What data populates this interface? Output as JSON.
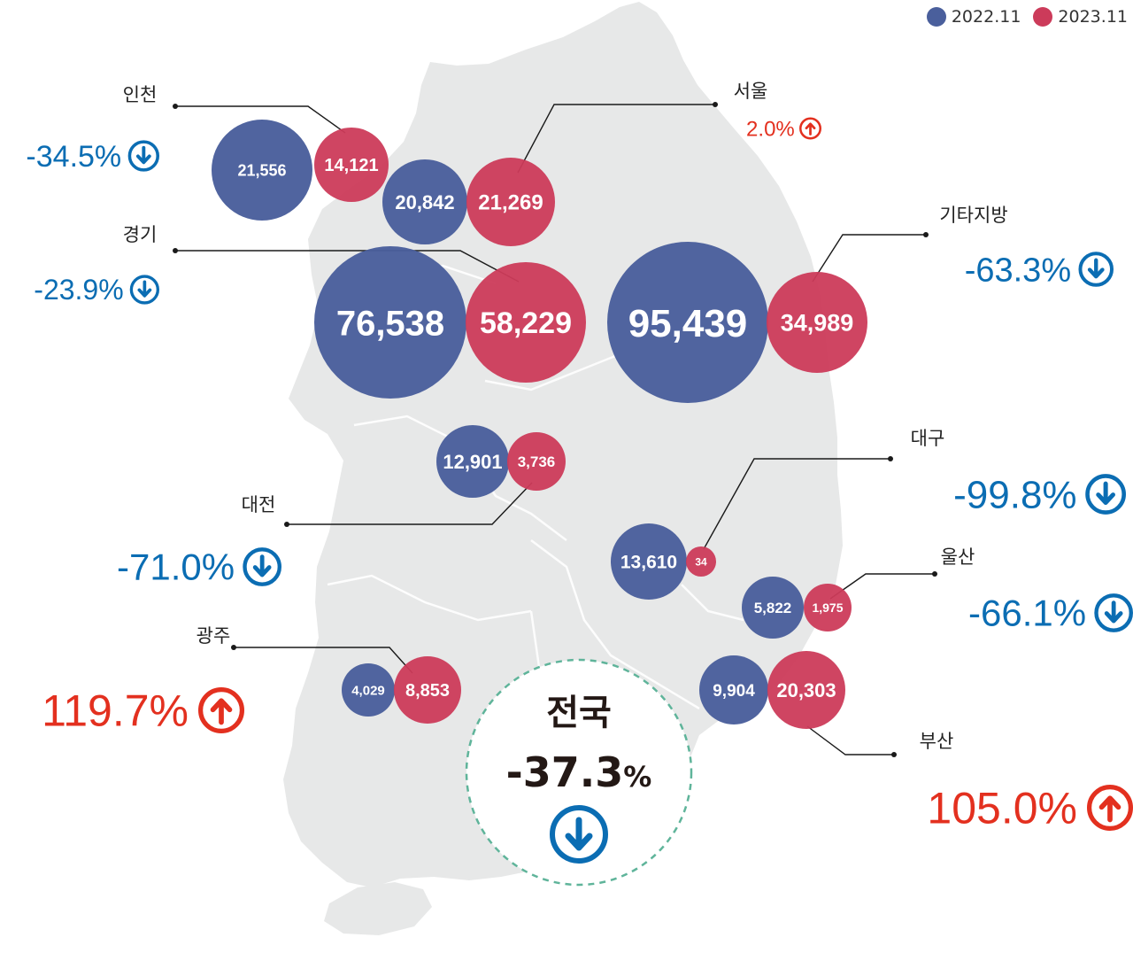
{
  "legend": {
    "items": [
      {
        "label": "2022.11",
        "color": "#4a5f9c"
      },
      {
        "label": "2023.11",
        "color": "#cc3b5a"
      }
    ]
  },
  "colors": {
    "y2022": "#4a5f9c",
    "y2023": "#cc3b5a",
    "down": "#0b6db3",
    "up": "#e3301f",
    "map": "#e7e8e8",
    "national_ring": "#5fb49a"
  },
  "national": {
    "name": "전국",
    "change": "-37.3",
    "unit": "%",
    "direction": "down"
  },
  "regions": [
    {
      "id": "incheon",
      "name": "인천",
      "v2022": "21,556",
      "v2023": "14,121",
      "change": "-34.5%",
      "direction": "down"
    },
    {
      "id": "seoul",
      "name": "서울",
      "v2022": "20,842",
      "v2023": "21,269",
      "change": "2.0%",
      "direction": "up"
    },
    {
      "id": "gyeonggi",
      "name": "경기",
      "v2022": "76,538",
      "v2023": "58,229",
      "change": "-23.9%",
      "direction": "down"
    },
    {
      "id": "others",
      "name": "기타지방",
      "v2022": "95,439",
      "v2023": "34,989",
      "change": "-63.3%",
      "direction": "down"
    },
    {
      "id": "daejeon",
      "name": "대전",
      "v2022": "12,901",
      "v2023": "3,736",
      "change": "-71.0%",
      "direction": "down"
    },
    {
      "id": "daegu",
      "name": "대구",
      "v2022": "13,610",
      "v2023": "34",
      "change": "-99.8%",
      "direction": "down"
    },
    {
      "id": "ulsan",
      "name": "울산",
      "v2022": "5,822",
      "v2023": "1,975",
      "change": "-66.1%",
      "direction": "down"
    },
    {
      "id": "gwangju",
      "name": "광주",
      "v2022": "4,029",
      "v2023": "8,853",
      "change": "119.7%",
      "direction": "up"
    },
    {
      "id": "busan",
      "name": "부산",
      "v2022": "9,904",
      "v2023": "20,303",
      "change": "105.0%",
      "direction": "up"
    }
  ]
}
